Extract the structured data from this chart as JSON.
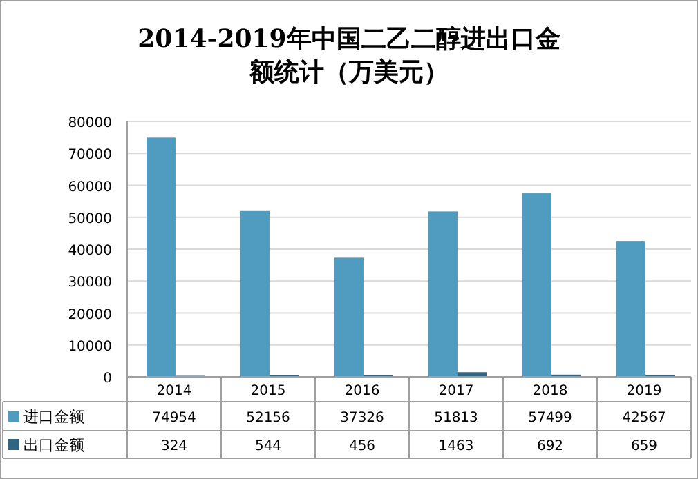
{
  "chart_data": {
    "type": "bar",
    "title": "2014-2019年中国二乙二醇进出口金额统计（万美元）",
    "categories": [
      "2014",
      "2015",
      "2016",
      "2017",
      "2018",
      "2019"
    ],
    "series": [
      {
        "name": "进口金额",
        "color": "#4f9cc0",
        "values": [
          74954,
          52156,
          37326,
          51813,
          57499,
          42567
        ]
      },
      {
        "name": "出口金额",
        "color": "#2f6580",
        "values": [
          324,
          544,
          456,
          1463,
          692,
          659
        ]
      }
    ],
    "ylim": [
      0,
      80000
    ],
    "yticks": [
      0,
      10000,
      20000,
      30000,
      40000,
      50000,
      60000,
      70000,
      80000
    ],
    "grid": "y",
    "data_labels": true,
    "legend": "bottom"
  }
}
